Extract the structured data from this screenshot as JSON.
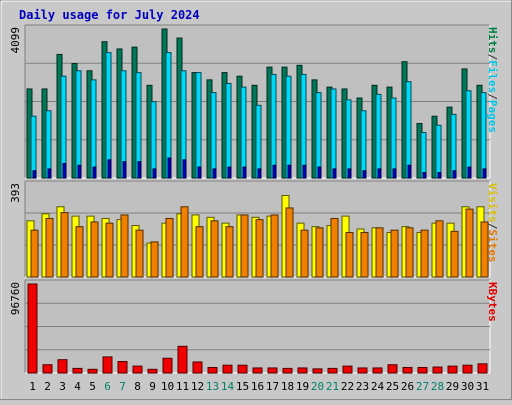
{
  "chart_data": {
    "type": "bar",
    "title": "Daily usage for July 2024",
    "categories": [
      "1",
      "2",
      "3",
      "4",
      "5",
      "6",
      "7",
      "8",
      "9",
      "10",
      "11",
      "12",
      "13",
      "14",
      "15",
      "16",
      "17",
      "18",
      "19",
      "20",
      "21",
      "22",
      "23",
      "24",
      "25",
      "26",
      "27",
      "28",
      "29",
      "30",
      "31"
    ],
    "weekend_days": [
      "6",
      "7",
      "13",
      "14",
      "20",
      "21",
      "27",
      "28"
    ],
    "panels": [
      {
        "id": "top",
        "max_label": "4099",
        "ymax": 4099,
        "right_labels": [
          {
            "text": "Pages",
            "color": "#00c8e8"
          },
          {
            "text": "/",
            "color": "#303030"
          },
          {
            "text": "Files",
            "color": "#00c8e8"
          },
          {
            "text": "/",
            "color": "#303030"
          },
          {
            "text": "Hits",
            "color": "#008040"
          }
        ],
        "series": [
          {
            "name": "Hits",
            "color": "#007858",
            "values": [
              2450,
              2450,
              3400,
              3150,
              2950,
              3750,
              3550,
              3600,
              2550,
              4099,
              3850,
              2900,
              2700,
              2900,
              2800,
              2550,
              3050,
              3050,
              3100,
              2700,
              2500,
              2450,
              2200,
              2550,
              2500,
              3200,
              1500,
              1700,
              1950,
              3000,
              2550
            ]
          },
          {
            "name": "Files",
            "color": "#00d8f8",
            "values": [
              1700,
              1850,
              2800,
              2950,
              2700,
              3450,
              2950,
              2900,
              2100,
              3450,
              2950,
              2900,
              2350,
              2600,
              2500,
              2000,
              2850,
              2800,
              2850,
              2350,
              2450,
              2150,
              1850,
              2300,
              2200,
              2650,
              1250,
              1450,
              1750,
              2400,
              2350
            ]
          },
          {
            "name": "Pages",
            "color": "#0000c8",
            "values": [
              200,
              250,
              400,
              350,
              300,
              500,
              450,
              450,
              250,
              550,
              500,
              300,
              250,
              300,
              300,
              250,
              350,
              350,
              350,
              300,
              250,
              250,
              200,
              250,
              250,
              350,
              150,
              150,
              200,
              300,
              250
            ]
          }
        ]
      },
      {
        "id": "middle",
        "max_label": "393",
        "ymax": 393,
        "right_labels": [
          {
            "text": "Sites",
            "color": "#e87800"
          },
          {
            "text": "/",
            "color": "#303030"
          },
          {
            "text": "Visits",
            "color": "#d8c000"
          }
        ],
        "series": [
          {
            "name": "Visits",
            "color": "#ffff00",
            "values": [
              240,
              270,
              300,
              260,
              260,
              250,
              245,
              220,
              145,
              230,
              270,
              265,
              255,
              230,
              265,
              255,
              260,
              348,
              230,
              215,
              220,
              260,
              205,
              210,
              190,
              215,
              190,
              230,
              230,
              300,
              300
            ]
          },
          {
            "name": "Sites",
            "color": "#f08000",
            "values": [
              200,
              250,
              275,
              215,
              235,
              230,
              265,
              200,
              150,
              250,
              300,
              215,
              240,
              215,
              265,
              245,
              265,
              295,
              200,
              210,
              250,
              190,
              190,
              210,
              200,
              210,
              200,
              240,
              195,
              290,
              235
            ]
          }
        ]
      },
      {
        "id": "bottom",
        "max_label": "96760",
        "ymax": 96760,
        "right_labels": [
          {
            "text": "KBytes",
            "color": "#e00000"
          }
        ],
        "series": [
          {
            "name": "KBytes",
            "color": "#f00000",
            "values": [
              96760,
              9000,
              14500,
              5000,
              4000,
              17500,
              12500,
              7500,
              4000,
              16000,
              29000,
              12000,
              6000,
              8500,
              8500,
              5500,
              5500,
              5000,
              5500,
              4500,
              5000,
              7500,
              5500,
              5500,
              9000,
              6000,
              6000,
              6500,
              7500,
              8500,
              10000
            ]
          }
        ]
      }
    ]
  }
}
